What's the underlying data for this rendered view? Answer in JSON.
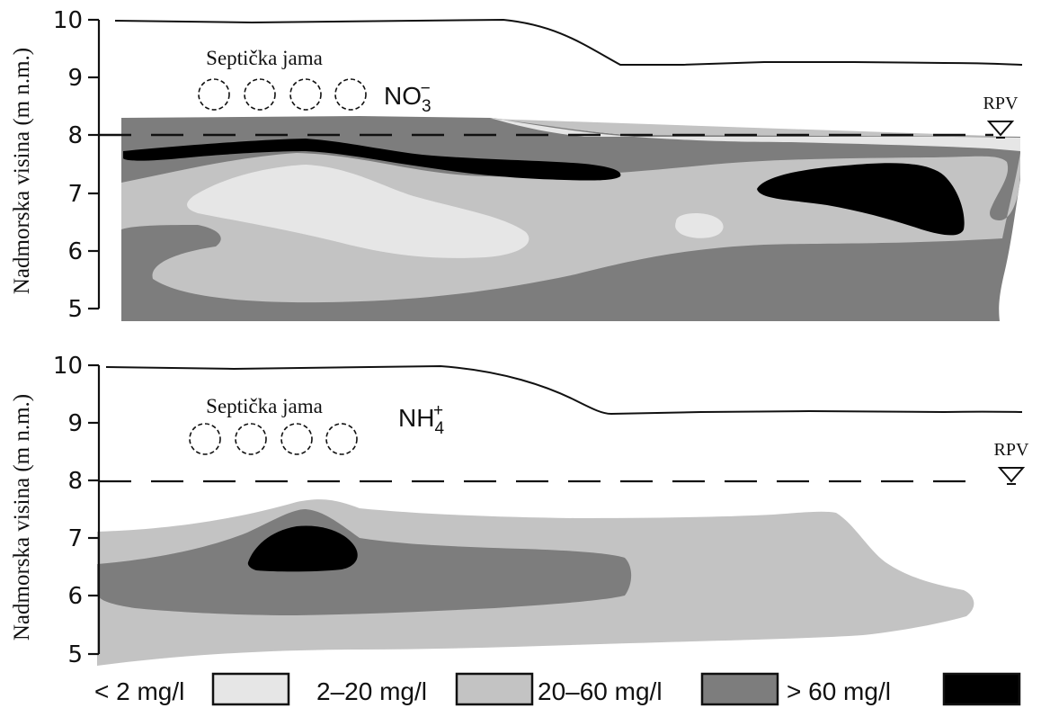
{
  "colors": {
    "lt2": "#e6e6e6",
    "r2_20": "#c3c3c3",
    "r20_60": "#7d7d7d",
    "gt60": "#000000",
    "line": "#111111"
  },
  "panels": [
    {
      "id": "nitrate",
      "ylabel": "Nadmorska visina (m n.m.)",
      "ticks": [
        "10",
        "9",
        "8",
        "7",
        "6",
        "5"
      ],
      "ion_base": "NO",
      "ion_sub": "3",
      "ion_sup": "−",
      "tank_label": "Septička jama",
      "rpv_label": "RPV"
    },
    {
      "id": "ammonium",
      "ylabel": "Nadmorska visina (m n.m.)",
      "ticks": [
        "10",
        "9",
        "8",
        "7",
        "6",
        "5"
      ],
      "ion_base": "NH",
      "ion_sub": "4",
      "ion_sup": "+",
      "tank_label": "Septička jama",
      "rpv_label": "RPV"
    }
  ],
  "legend": [
    {
      "label": "< 2 mg/l",
      "color_key": "lt2"
    },
    {
      "label": "2–20 mg/l",
      "color_key": "r2_20"
    },
    {
      "label": "20–60 mg/l",
      "color_key": "r20_60"
    },
    {
      "label": "> 60 mg/l",
      "color_key": "gt60"
    }
  ]
}
